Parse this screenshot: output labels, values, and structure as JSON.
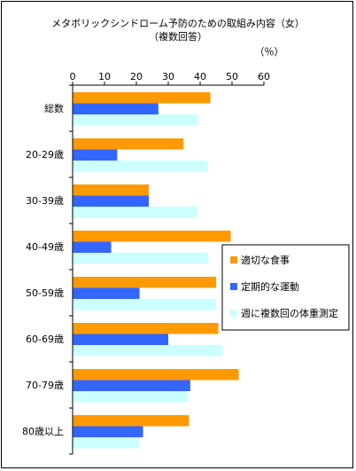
{
  "chart_data": {
    "type": "bar",
    "orientation": "horizontal",
    "title": "メタボリックシンドローム予防のための取組み内容（女）",
    "subtitle": "（複数回答）",
    "unit_label": "（％）",
    "xlim": [
      0,
      60
    ],
    "x_ticks": [
      "0",
      "10",
      "20",
      "30",
      "40",
      "50",
      "60"
    ],
    "grid": false,
    "legend_position": "right",
    "categories": [
      "総数",
      "20-29歳",
      "30-39歳",
      "40-49歳",
      "50-59歳",
      "60-69歳",
      "70-79歳",
      "80歳以上"
    ],
    "series": [
      {
        "name": "適切な食事",
        "color": "#ff9900",
        "values": [
          43.2,
          34.8,
          23.9,
          49.6,
          45.0,
          45.7,
          52.1,
          36.5
        ]
      },
      {
        "name": "定期的な運動",
        "color": "#3366ff",
        "values": [
          26.9,
          14.0,
          23.9,
          12.1,
          21.0,
          30.0,
          36.9,
          22.1
        ]
      },
      {
        "name": "週に複数回の体重測定",
        "color": "#ccffff",
        "values": [
          39.4,
          42.4,
          39.2,
          42.6,
          45.0,
          46.9,
          36.1,
          20.8
        ]
      }
    ]
  }
}
